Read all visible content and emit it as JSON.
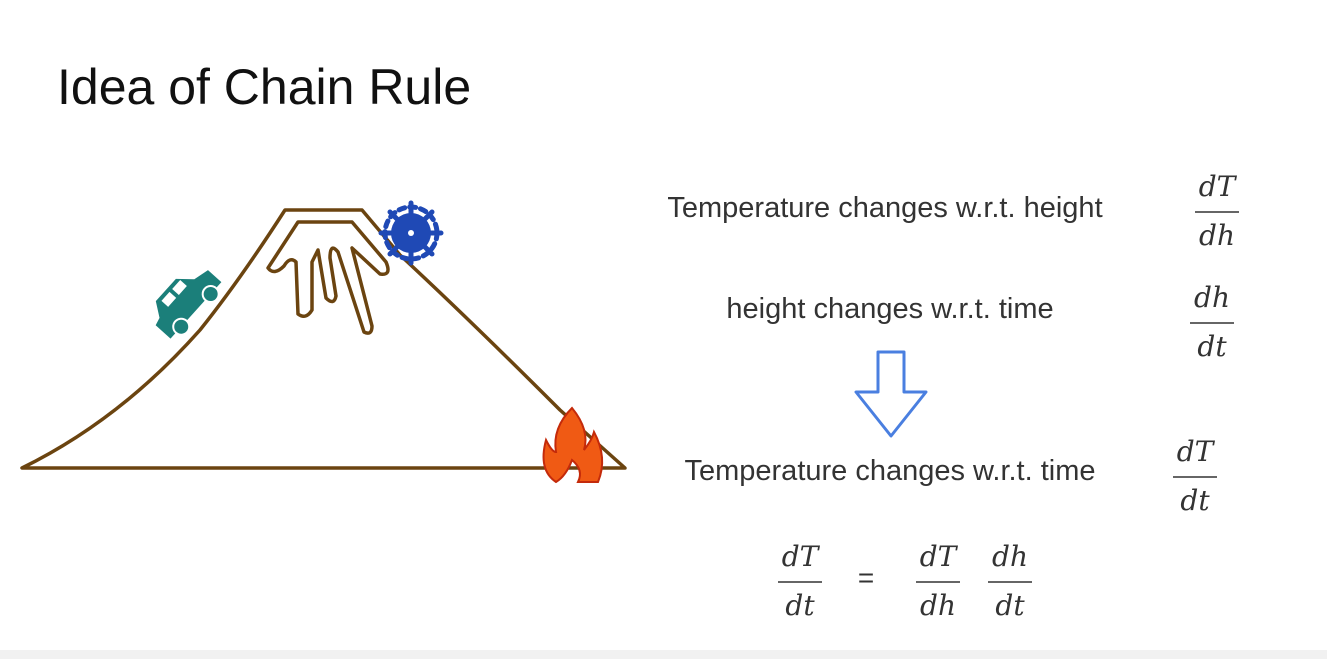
{
  "title": "Idea of Chain Rule",
  "statements": [
    {
      "text": "Temperature changes w.r.t. height",
      "num": "dT",
      "den": "dh"
    },
    {
      "text": "height changes w.r.t. time",
      "num": "dh",
      "den": "dt"
    },
    {
      "text": "Temperature changes w.r.t. time",
      "num": "dT",
      "den": "dt"
    }
  ],
  "equation": {
    "lhs": {
      "num": "dT",
      "den": "dt"
    },
    "equals": "=",
    "rhs": [
      {
        "num": "dT",
        "den": "dh"
      },
      {
        "num": "dh",
        "den": "dt"
      }
    ]
  },
  "colors": {
    "mountain": "#6b4410",
    "car": "#1b7f7a",
    "snowflake": "#1f49b5",
    "fire": "#f05a14",
    "arrow": "#4a7fe0"
  },
  "icons": [
    "car-icon",
    "snowflake-icon",
    "fire-icon",
    "down-arrow-icon"
  ]
}
